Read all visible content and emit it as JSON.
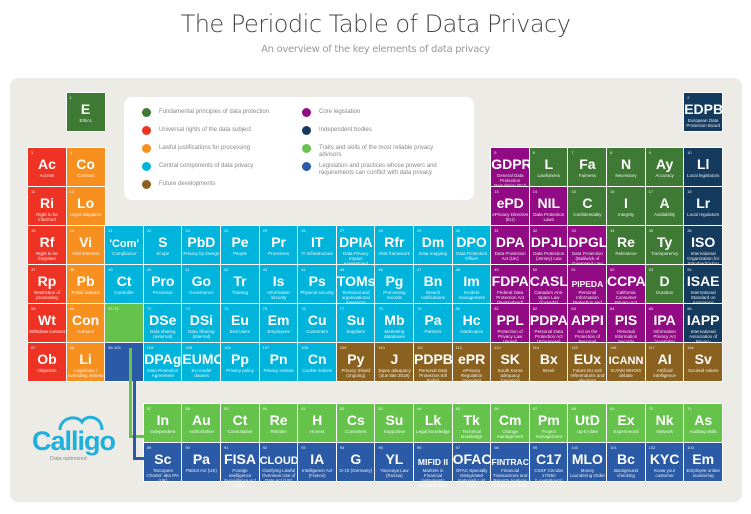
{
  "header": {
    "title": "The Periodic Table of Data Privacy",
    "subtitle": "An overview of the key elements of data privacy"
  },
  "colors": {
    "fundamental": "#3f7a35",
    "rights": "#ee3325",
    "lawful": "#f7901e",
    "central": "#00b4dc",
    "future": "#8b6120",
    "core": "#920b84",
    "independent": "#143a5e",
    "traits": "#65c34c",
    "conflict": "#2b5aa6",
    "panel": "#ecebe6"
  },
  "legend": [
    {
      "label": "Fundamental principles of data protection",
      "cat": "fundamental"
    },
    {
      "label": "Universal rights of the data subject",
      "cat": "rights"
    },
    {
      "label": "Lawful justifications for processing",
      "cat": "lawful"
    },
    {
      "label": "Central components of data privacy",
      "cat": "central"
    },
    {
      "label": "Future developments",
      "cat": "future"
    },
    {
      "label": "Core legislation",
      "cat": "core"
    },
    {
      "label": "Independent bodies",
      "cat": "independent"
    },
    {
      "label": "Traits and skills of the most reliable privacy advisors",
      "cat": "traits"
    },
    {
      "label": "Legislation and practices whose powers and requirements can conflict with data privacy",
      "cat": "conflict"
    }
  ],
  "elements": [
    {
      "n": "1",
      "s": "E",
      "name": "Ethics",
      "cat": "fundamental",
      "col": 1,
      "row": 0
    },
    {
      "n": "2",
      "s": "EDPB",
      "name": "European Data Protection Board",
      "cat": "independent",
      "col": 17,
      "row": 0
    },
    {
      "n": "3",
      "s": "Ac",
      "name": "Access",
      "cat": "rights",
      "col": 0,
      "row": 1
    },
    {
      "n": "4",
      "s": "Co",
      "name": "Contract",
      "cat": "lawful",
      "col": 1,
      "row": 1
    },
    {
      "n": "5",
      "s": "GDPR",
      "name": "General Data Protection Regulation (EU)",
      "cat": "core",
      "col": 12,
      "row": 1
    },
    {
      "n": "6",
      "s": "L",
      "name": "Lawfulness",
      "cat": "fundamental",
      "col": 13,
      "row": 1
    },
    {
      "n": "7",
      "s": "Fa",
      "name": "Fairness",
      "cat": "fundamental",
      "col": 14,
      "row": 1
    },
    {
      "n": "8",
      "s": "N",
      "name": "Necessary",
      "cat": "fundamental",
      "col": 15,
      "row": 1
    },
    {
      "n": "9",
      "s": "Ay",
      "name": "Accuracy",
      "cat": "fundamental",
      "col": 16,
      "row": 1
    },
    {
      "n": "10",
      "s": "Ll",
      "name": "Local legislators",
      "cat": "independent",
      "col": 17,
      "row": 1
    },
    {
      "n": "11",
      "s": "Ri",
      "name": "Right to be informed",
      "cat": "rights",
      "col": 0,
      "row": 2
    },
    {
      "n": "12",
      "s": "Lo",
      "name": "Legal obligation",
      "cat": "lawful",
      "col": 1,
      "row": 2
    },
    {
      "n": "13",
      "s": "ePD",
      "name": "ePrivacy Directive (EU)",
      "cat": "core",
      "col": 12,
      "row": 2
    },
    {
      "n": "14",
      "s": "NIL",
      "name": "Data Protection Laws",
      "cat": "core",
      "col": 13,
      "row": 2
    },
    {
      "n": "15",
      "s": "C",
      "name": "Confidentiality",
      "cat": "fundamental",
      "col": 14,
      "row": 2
    },
    {
      "n": "16",
      "s": "I",
      "name": "Integrity",
      "cat": "fundamental",
      "col": 15,
      "row": 2
    },
    {
      "n": "17",
      "s": "A",
      "name": "Availability",
      "cat": "fundamental",
      "col": 16,
      "row": 2
    },
    {
      "n": "18",
      "s": "Lr",
      "name": "Local regulators",
      "cat": "independent",
      "col": 17,
      "row": 2
    },
    {
      "n": "19",
      "s": "Rf",
      "name": "Right to be forgotten",
      "cat": "rights",
      "col": 0,
      "row": 3
    },
    {
      "n": "20",
      "s": "Vi",
      "name": "Vital interests",
      "cat": "lawful",
      "col": 1,
      "row": 3
    },
    {
      "n": "21",
      "s": "'Com'",
      "name": "'Compliance'",
      "cat": "central",
      "col": 2,
      "row": 3
    },
    {
      "n": "22",
      "s": "S",
      "name": "Scope",
      "cat": "central",
      "col": 3,
      "row": 3
    },
    {
      "n": "23",
      "s": "PbD",
      "name": "Privacy by Design",
      "cat": "central",
      "col": 4,
      "row": 3
    },
    {
      "n": "24",
      "s": "Pe",
      "name": "People",
      "cat": "central",
      "col": 5,
      "row": 3
    },
    {
      "n": "25",
      "s": "Pr",
      "name": "Processes",
      "cat": "central",
      "col": 6,
      "row": 3
    },
    {
      "n": "26",
      "s": "IT",
      "name": "IT Infrastructure",
      "cat": "central",
      "col": 7,
      "row": 3
    },
    {
      "n": "27",
      "s": "DPIA",
      "name": "Data Privacy Impact Assessment",
      "cat": "central",
      "col": 8,
      "row": 3
    },
    {
      "n": "28",
      "s": "Rfr",
      "name": "Risk framework",
      "cat": "central",
      "col": 9,
      "row": 3
    },
    {
      "n": "29",
      "s": "Dm",
      "name": "Data mapping",
      "cat": "central",
      "col": 10,
      "row": 3
    },
    {
      "n": "30",
      "s": "DPO",
      "name": "Data Protection Officer",
      "cat": "central",
      "col": 11,
      "row": 3
    },
    {
      "n": "31",
      "s": "DPA",
      "name": "Data Protection Act (UK)",
      "cat": "core",
      "col": 12,
      "row": 3
    },
    {
      "n": "32",
      "s": "DPJL",
      "name": "Data Protection (Jersey) Law",
      "cat": "core",
      "col": 13,
      "row": 3
    },
    {
      "n": "33",
      "s": "DPGL",
      "name": "Data Protection (Bailiwick of Guernsey) Law",
      "cat": "core",
      "col": 14,
      "row": 3
    },
    {
      "n": "34",
      "s": "Re",
      "name": "Relevance",
      "cat": "fundamental",
      "col": 15,
      "row": 3
    },
    {
      "n": "35",
      "s": "Ty",
      "name": "Transparency",
      "cat": "fundamental",
      "col": 16,
      "row": 3
    },
    {
      "n": "36",
      "s": "ISO",
      "name": "International Organization for Standardization",
      "cat": "independent",
      "col": 17,
      "row": 3
    },
    {
      "n": "37",
      "s": "Rp",
      "name": "Restriction of processing",
      "cat": "rights",
      "col": 0,
      "row": 4
    },
    {
      "n": "38",
      "s": "Pb",
      "name": "Public interest",
      "cat": "lawful",
      "col": 1,
      "row": 4
    },
    {
      "n": "39",
      "s": "Ct",
      "name": "Controller",
      "cat": "central",
      "col": 2,
      "row": 4
    },
    {
      "n": "40",
      "s": "Pro",
      "name": "Processor",
      "cat": "central",
      "col": 3,
      "row": 4
    },
    {
      "n": "41",
      "s": "Go",
      "name": "Governance",
      "cat": "central",
      "col": 4,
      "row": 4
    },
    {
      "n": "42",
      "s": "Tr",
      "name": "Training",
      "cat": "central",
      "col": 5,
      "row": 4
    },
    {
      "n": "43",
      "s": "Is",
      "name": "Information security",
      "cat": "central",
      "col": 6,
      "row": 4
    },
    {
      "n": "44",
      "s": "Ps",
      "name": "Physical security",
      "cat": "central",
      "col": 7,
      "row": 4
    },
    {
      "n": "45",
      "s": "TOMs",
      "name": "Technical and organisational measures",
      "cat": "central",
      "col": 8,
      "row": 4
    },
    {
      "n": "46",
      "s": "Pg",
      "name": "Processing records",
      "cat": "central",
      "col": 9,
      "row": 4
    },
    {
      "n": "47",
      "s": "Bn",
      "name": "Breach notifications",
      "cat": "central",
      "col": 10,
      "row": 4
    },
    {
      "n": "48",
      "s": "Im",
      "name": "Incident management",
      "cat": "central",
      "col": 11,
      "row": 4
    },
    {
      "n": "49",
      "s": "FDPA",
      "name": "Federal Data Protection Act (Switzerland)",
      "cat": "core",
      "col": 12,
      "row": 4
    },
    {
      "n": "50",
      "s": "CASL",
      "name": "Canada's Anti-Spam Law (Canada)",
      "cat": "core",
      "col": 13,
      "row": 4
    },
    {
      "n": "51",
      "s": "PIPEDA",
      "name": "Personal Information Protection and Electronic Documents Act",
      "cat": "core",
      "col": 14,
      "row": 4
    },
    {
      "n": "52",
      "s": "CCPA",
      "name": "California Consumer Privacy Act",
      "cat": "core",
      "col": 15,
      "row": 4
    },
    {
      "n": "53",
      "s": "D",
      "name": "Duration",
      "cat": "fundamental",
      "col": 16,
      "row": 4
    },
    {
      "n": "54",
      "s": "ISAE",
      "name": "International Standard on Assurance Engagements",
      "cat": "independent",
      "col": 17,
      "row": 4
    },
    {
      "n": "55",
      "s": "Wt",
      "name": "Withdraw consent",
      "cat": "rights",
      "col": 0,
      "row": 5
    },
    {
      "n": "56",
      "s": "Con",
      "name": "Consent",
      "cat": "lawful",
      "col": 1,
      "row": 5
    },
    {
      "n": "57-71",
      "s": "",
      "name": "",
      "cat": "traits",
      "col": 2,
      "row": 5
    },
    {
      "n": "72",
      "s": "DSe",
      "name": "Data sharing (external)",
      "cat": "central",
      "col": 3,
      "row": 5
    },
    {
      "n": "73",
      "s": "DSi",
      "name": "Data Sharing (internal)",
      "cat": "central",
      "col": 4,
      "row": 5
    },
    {
      "n": "74",
      "s": "Eu",
      "name": "End users",
      "cat": "central",
      "col": 5,
      "row": 5
    },
    {
      "n": "75",
      "s": "Em",
      "name": "Employees",
      "cat": "central",
      "col": 6,
      "row": 5
    },
    {
      "n": "76",
      "s": "Cu",
      "name": "Customers",
      "cat": "central",
      "col": 7,
      "row": 5
    },
    {
      "n": "77",
      "s": "Su",
      "name": "Suppliers",
      "cat": "central",
      "col": 8,
      "row": 5
    },
    {
      "n": "78",
      "s": "Mb",
      "name": "Marketing databases",
      "cat": "central",
      "col": 9,
      "row": 5
    },
    {
      "n": "79",
      "s": "Pa",
      "name": "Partners",
      "cat": "central",
      "col": 10,
      "row": 5
    },
    {
      "n": "80",
      "s": "Hc",
      "name": "Hardcopies",
      "cat": "central",
      "col": 11,
      "row": 5
    },
    {
      "n": "81",
      "s": "PPL",
      "name": "Protection of Privacy Law (Israel)",
      "cat": "core",
      "col": 12,
      "row": 5
    },
    {
      "n": "82",
      "s": "PDPA",
      "name": "Personal Data Protection Act (Singapore)",
      "cat": "core",
      "col": 13,
      "row": 5
    },
    {
      "n": "83",
      "s": "APPI",
      "name": "Act on the Protection of Personal Information (Japan)",
      "cat": "core",
      "col": 14,
      "row": 5
    },
    {
      "n": "84",
      "s": "PIS",
      "name": "Personal Information Security Specification (China)",
      "cat": "core",
      "col": 15,
      "row": 5
    },
    {
      "n": "85",
      "s": "IPA",
      "name": "Information Privacy Act (Australia)",
      "cat": "core",
      "col": 16,
      "row": 5
    },
    {
      "n": "86",
      "s": "IAPP",
      "name": "International Association of Privacy Professionals",
      "cat": "independent",
      "col": 17,
      "row": 5
    },
    {
      "n": "87",
      "s": "Ob",
      "name": "Objection",
      "cat": "rights",
      "col": 0,
      "row": 6
    },
    {
      "n": "88",
      "s": "Li",
      "name": "Legitimate / overriding interest",
      "cat": "lawful",
      "col": 1,
      "row": 6
    },
    {
      "n": "89-103",
      "s": "",
      "name": "",
      "cat": "conflict",
      "col": 2,
      "row": 6
    },
    {
      "n": "104",
      "s": "DPAg",
      "name": "Data Protection Agreement",
      "cat": "central",
      "col": 3,
      "row": 6
    },
    {
      "n": "105",
      "s": "EUMC",
      "name": "EU model clauses",
      "cat": "central",
      "col": 4,
      "row": 6
    },
    {
      "n": "106",
      "s": "Pp",
      "name": "Privacy policy",
      "cat": "central",
      "col": 5,
      "row": 6
    },
    {
      "n": "107",
      "s": "Pn",
      "name": "Privacy notices",
      "cat": "central",
      "col": 6,
      "row": 6
    },
    {
      "n": "108",
      "s": "Cn",
      "name": "Cookie notices",
      "cat": "central",
      "col": 7,
      "row": 6
    },
    {
      "n": "109",
      "s": "Py",
      "name": "Privacy Shield (ongoing)",
      "cat": "future",
      "col": 8,
      "row": 6
    },
    {
      "n": "110",
      "s": "J",
      "name": "Japan adequacy (due late 2018)",
      "cat": "future",
      "col": 9,
      "row": 6
    },
    {
      "n": "111",
      "s": "PDPB",
      "name": "Personal Data Protection Bill (India)",
      "cat": "future",
      "col": 10,
      "row": 6
    },
    {
      "n": "112",
      "s": "ePR",
      "name": "ePrivacy Regulation (ongoing)",
      "cat": "future",
      "col": 11,
      "row": 6
    },
    {
      "n": "113",
      "s": "SK",
      "name": "South Korea adequacy (ongoing)",
      "cat": "future",
      "col": 12,
      "row": 6
    },
    {
      "n": "114",
      "s": "Bx",
      "name": "Brexit",
      "cat": "future",
      "col": 13,
      "row": 6
    },
    {
      "n": "115",
      "s": "EUx",
      "name": "Future EU exit referendums and elections",
      "cat": "future",
      "col": 14,
      "row": 6
    },
    {
      "n": "116",
      "s": "ICANN",
      "name": "ICANN WHOIS debate",
      "cat": "future",
      "col": 15,
      "row": 6
    },
    {
      "n": "117",
      "s": "AI",
      "name": "Artificial intelligence",
      "cat": "future",
      "col": 16,
      "row": 6
    },
    {
      "n": "118",
      "s": "Sv",
      "name": "Societal values",
      "cat": "future",
      "col": 17,
      "row": 6
    },
    {
      "n": "57",
      "s": "In",
      "name": "Independent",
      "cat": "traits",
      "col": 3,
      "row": 8
    },
    {
      "n": "58",
      "s": "Au",
      "name": "Authoritative",
      "cat": "traits",
      "col": 4,
      "row": 8
    },
    {
      "n": "59",
      "s": "Ct",
      "name": "Consultative",
      "cat": "traits",
      "col": 5,
      "row": 8
    },
    {
      "n": "60",
      "s": "Re",
      "name": "Reliable",
      "cat": "traits",
      "col": 6,
      "row": 8
    },
    {
      "n": "61",
      "s": "H",
      "name": "Honest",
      "cat": "traits",
      "col": 7,
      "row": 8
    },
    {
      "n": "62",
      "s": "Cs",
      "name": "Consistent",
      "cat": "traits",
      "col": 8,
      "row": 8
    },
    {
      "n": "63",
      "s": "Su",
      "name": "Supportive",
      "cat": "traits",
      "col": 9,
      "row": 8
    },
    {
      "n": "64",
      "s": "Lk",
      "name": "Legal knowledge",
      "cat": "traits",
      "col": 10,
      "row": 8
    },
    {
      "n": "65",
      "s": "Tk",
      "name": "Technical knowledge",
      "cat": "traits",
      "col": 11,
      "row": 8
    },
    {
      "n": "66",
      "s": "Cm",
      "name": "Change management",
      "cat": "traits",
      "col": 12,
      "row": 8
    },
    {
      "n": "67",
      "s": "Pm",
      "name": "Project management",
      "cat": "traits",
      "col": 13,
      "row": 8
    },
    {
      "n": "68",
      "s": "UtD",
      "name": "Up-to-date",
      "cat": "traits",
      "col": 14,
      "row": 8
    },
    {
      "n": "69",
      "s": "Ex",
      "name": "Experienced",
      "cat": "traits",
      "col": 15,
      "row": 8
    },
    {
      "n": "70",
      "s": "Nk",
      "name": "Network",
      "cat": "traits",
      "col": 16,
      "row": 8
    },
    {
      "n": "71",
      "s": "As",
      "name": "Auditing skills",
      "cat": "traits",
      "col": 17,
      "row": 8
    },
    {
      "n": "89",
      "s": "Sc",
      "name": "'Snoopers Charter' aka IPA (UK)",
      "cat": "conflict",
      "col": 3,
      "row": 9
    },
    {
      "n": "90",
      "s": "Pa",
      "name": "Patriot Act (US)",
      "cat": "conflict",
      "col": 4,
      "row": 9
    },
    {
      "n": "91",
      "s": "FISA",
      "name": "Foreign Intelligence Surveillance Act (US)",
      "cat": "conflict",
      "col": 5,
      "row": 9
    },
    {
      "n": "92",
      "s": "CLOUD",
      "name": "Clarifying Lawful Overseas Use of Data Act (US)",
      "cat": "conflict",
      "col": 6,
      "row": 9
    },
    {
      "n": "93",
      "s": "IA",
      "name": "Intelligence Act (France)",
      "cat": "conflict",
      "col": 7,
      "row": 9
    },
    {
      "n": "94",
      "s": "G",
      "name": "G-10 (Germany)",
      "cat": "conflict",
      "col": 8,
      "row": 9
    },
    {
      "n": "95",
      "s": "YL",
      "name": "Yarovaya Law (Russia)",
      "cat": "conflict",
      "col": 9,
      "row": 9
    },
    {
      "n": "96",
      "s": "MIFID II",
      "name": "Markets in Financial Instruments Directive (EU)",
      "cat": "conflict",
      "col": 10,
      "row": 9
    },
    {
      "n": "97",
      "s": "OFAC",
      "name": "OFAC Specially Designated Nationals List (US)",
      "cat": "conflict",
      "col": 11,
      "row": 9
    },
    {
      "n": "98",
      "s": "FINTRAC",
      "name": "Financial Transactions and Reports Analysis Centre (Canada)",
      "cat": "conflict",
      "col": 12,
      "row": 9
    },
    {
      "n": "99",
      "s": "C17",
      "name": "CSSF Circular 17/650 (Luxembourg)",
      "cat": "conflict",
      "col": 13,
      "row": 9
    },
    {
      "n": "100",
      "s": "MLO",
      "name": "Money Laundering Order",
      "cat": "conflict",
      "col": 14,
      "row": 9
    },
    {
      "n": "101",
      "s": "Bc",
      "name": "Background checking",
      "cat": "conflict",
      "col": 15,
      "row": 9
    },
    {
      "n": "102",
      "s": "KYC",
      "name": "Know your customer",
      "cat": "conflict",
      "col": 16,
      "row": 9
    },
    {
      "n": "103",
      "s": "Em",
      "name": "Employee online monitoring",
      "cat": "conflict",
      "col": 17,
      "row": 9
    }
  ],
  "logo": {
    "name": "Calligo",
    "tagline": "Data optimized"
  }
}
